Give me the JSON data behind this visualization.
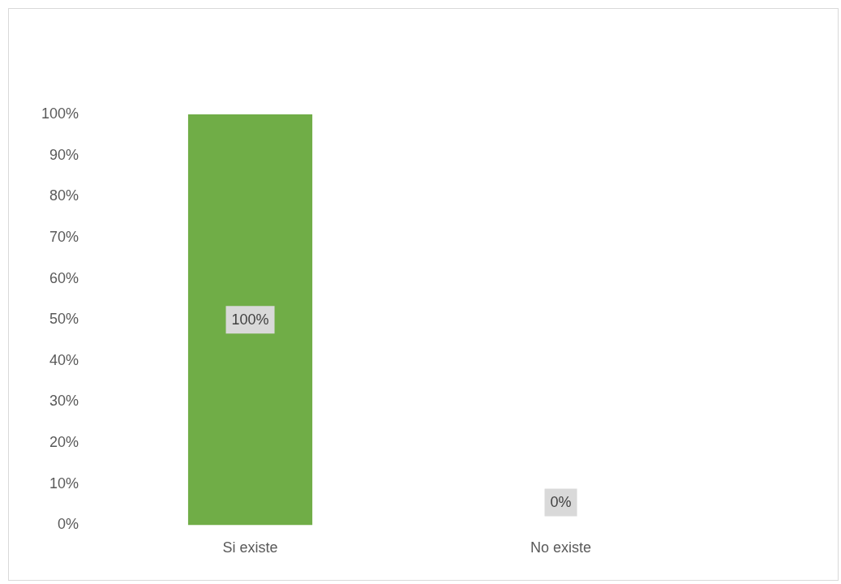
{
  "chart_data": {
    "type": "bar",
    "categories": [
      "Si existe",
      "No existe"
    ],
    "values": [
      100,
      0
    ],
    "colors": [
      "#70ad47",
      "#41719c"
    ],
    "value_labels": [
      "100%",
      "0%"
    ],
    "ylim": [
      0,
      100
    ],
    "yticks": [
      {
        "value": 0,
        "label": "0%"
      },
      {
        "value": 10,
        "label": "10%"
      },
      {
        "value": 20,
        "label": "20%"
      },
      {
        "value": 30,
        "label": "30%"
      },
      {
        "value": 40,
        "label": "40%"
      },
      {
        "value": 50,
        "label": "50%"
      },
      {
        "value": 60,
        "label": "60%"
      },
      {
        "value": 70,
        "label": "70%"
      },
      {
        "value": 80,
        "label": "80%"
      },
      {
        "value": 90,
        "label": "90%"
      },
      {
        "value": 100,
        "label": "100%"
      }
    ],
    "grid": false,
    "legend": false
  }
}
